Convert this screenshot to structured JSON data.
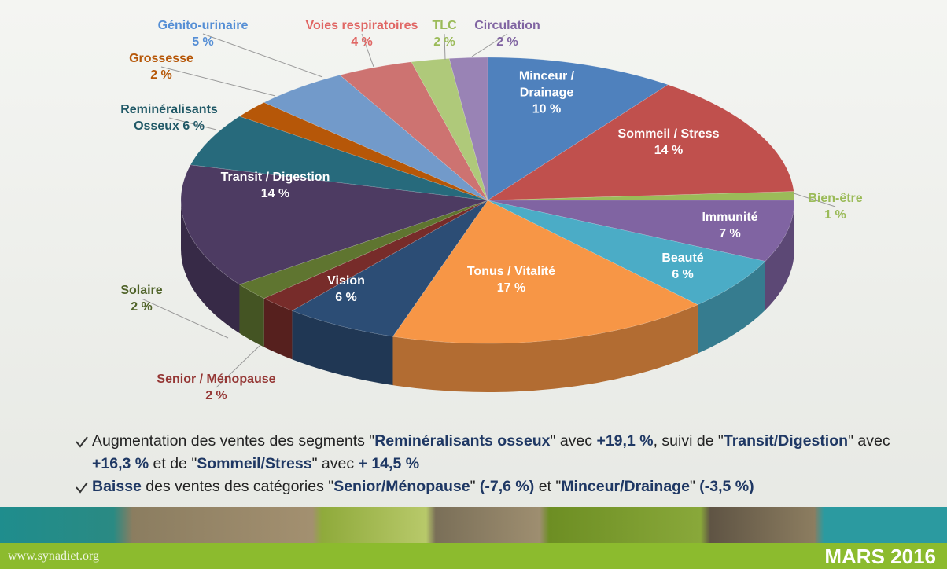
{
  "chart_data": {
    "type": "pie",
    "categories": [
      "Minceur / Drainage",
      "Sommeil / Stress",
      "Bien-être",
      "Immunité",
      "Beauté",
      "Tonus / Vitalité",
      "Vision",
      "Senior / Ménopause",
      "Solaire",
      "Transit / Digestion",
      "Reminéralisants Osseux",
      "Grossesse",
      "Génito-urinaire",
      "Voies respiratoires",
      "TLC",
      "Circulation"
    ],
    "values": [
      10,
      14,
      1,
      7,
      6,
      17,
      6,
      2,
      2,
      14,
      6,
      2,
      5,
      4,
      2,
      2
    ],
    "value_labels": [
      "10 %",
      "14 %",
      "1 %",
      "7 %",
      "6 %",
      "17 %",
      "6 %",
      "2 %",
      "2 %",
      "14 %",
      "6 %",
      "2 %",
      "5 %",
      "4 %",
      "2 %",
      "2 %"
    ],
    "colors": [
      "#4f81bd",
      "#c0504d",
      "#9bbb59",
      "#8064a2",
      "#4bacc6",
      "#f79646",
      "#2c4d75",
      "#772c2a",
      "#5f7530",
      "#4d3b62",
      "#276a7c",
      "#b65708",
      "#729aca",
      "#cd7371",
      "#afc97a",
      "#9983b5"
    ]
  },
  "notes": [
    [
      {
        "text": "Augmentation des ventes des segments \"",
        "bold": false
      },
      {
        "text": "Reminéralisants osseux",
        "bold": true
      },
      {
        "text": "\" avec ",
        "bold": false
      },
      {
        "text": "+19,1 %",
        "bold": true
      },
      {
        "text": ", suivi de \"",
        "bold": false
      },
      {
        "text": "Transit/Digestion",
        "bold": true
      },
      {
        "text": "\" avec ",
        "bold": false
      },
      {
        "text": "+16,3 %",
        "bold": true
      },
      {
        "text": " et de \"",
        "bold": false
      },
      {
        "text": "Sommeil/Stress",
        "bold": true
      },
      {
        "text": "\" avec ",
        "bold": false
      },
      {
        "text": "+ 14,5 %",
        "bold": true
      }
    ],
    [
      {
        "text": "Baisse",
        "bold": true
      },
      {
        "text": " des ventes des catégories \"",
        "bold": false
      },
      {
        "text": "Senior/Ménopause",
        "bold": true
      },
      {
        "text": "\" ",
        "bold": false
      },
      {
        "text": "(-7,6 %)",
        "bold": true
      },
      {
        "text": " et \"",
        "bold": false
      },
      {
        "text": "Minceur/Drainage",
        "bold": true
      },
      {
        "text": "\" ",
        "bold": false
      },
      {
        "text": "(-3,5 %)",
        "bold": true
      }
    ]
  ],
  "footer": {
    "website": "www.synadiet.org",
    "date": "MARS 2016"
  }
}
